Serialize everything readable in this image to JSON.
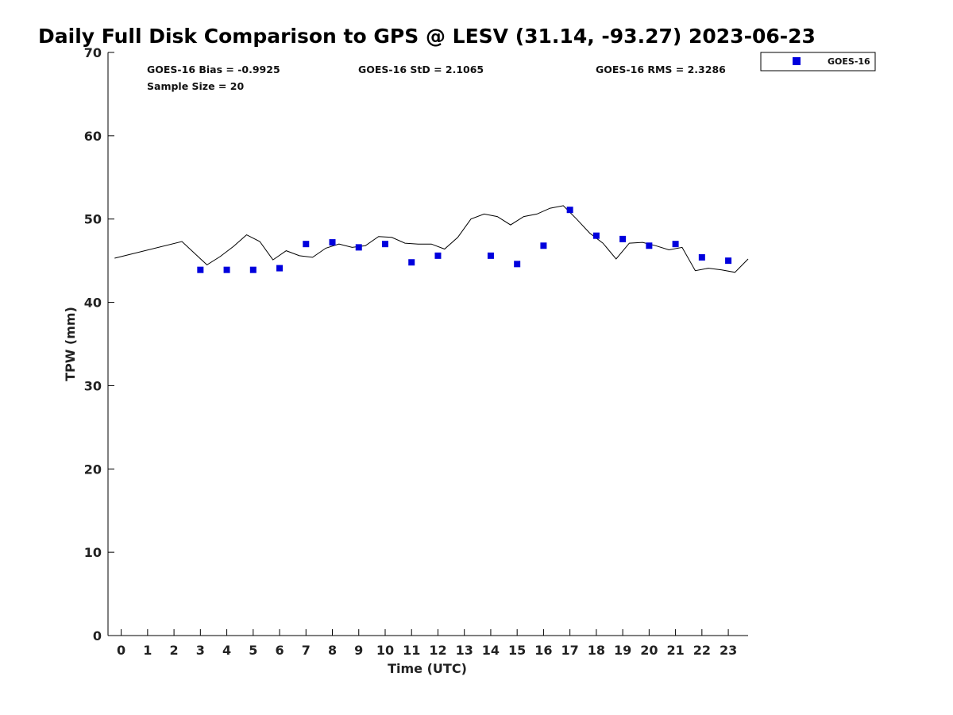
{
  "chart_data": {
    "type": "line",
    "title": "Daily Full Disk Comparison to GPS @ LESV (31.14, -93.27) 2023-06-23",
    "xlabel": "Time (UTC)",
    "ylabel": "TPW (mm)",
    "xlim": [
      -0.5,
      23.75
    ],
    "ylim": [
      0,
      70
    ],
    "x_ticks": [
      0,
      1,
      2,
      3,
      4,
      5,
      6,
      7,
      8,
      9,
      10,
      11,
      12,
      13,
      14,
      15,
      16,
      17,
      18,
      19,
      20,
      21,
      22,
      23
    ],
    "y_ticks": [
      0,
      10,
      20,
      30,
      40,
      50,
      60,
      70
    ],
    "grid": false,
    "legend_position": "outside top-right",
    "stats": {
      "bias": "GOES-16 Bias = -0.9925",
      "std": "GOES-16 StD = 2.1065",
      "rms": "GOES-16 RMS = 2.3286",
      "sample": "Sample Size = 20"
    },
    "series": [
      {
        "kind": "line",
        "color": "#000000",
        "x": [
          -0.25,
          2.3,
          3.25,
          3.75,
          4.25,
          4.75,
          5.25,
          5.75,
          6.25,
          6.75,
          7.25,
          7.75,
          8.25,
          8.75,
          9.25,
          9.75,
          10.25,
          10.75,
          11.25,
          11.75,
          12.25,
          12.75,
          13.25,
          13.75,
          14.25,
          14.75,
          15.25,
          15.75,
          16.25,
          16.75,
          17.25,
          17.75,
          18.25,
          18.75,
          19.25,
          19.75,
          20.25,
          20.75,
          21.25,
          21.75,
          22.25,
          22.75,
          23.25,
          23.75
        ],
        "y": [
          45.3,
          47.3,
          44.5,
          45.5,
          46.7,
          48.1,
          47.3,
          45.1,
          46.2,
          45.6,
          45.4,
          46.5,
          47.0,
          46.6,
          46.8,
          47.9,
          47.8,
          47.1,
          47.0,
          47.0,
          46.4,
          47.8,
          50.0,
          50.6,
          50.3,
          49.3,
          50.3,
          50.6,
          51.3,
          51.6,
          50.0,
          48.3,
          47.1,
          45.2,
          47.1,
          47.2,
          46.8,
          46.3,
          46.6,
          43.8,
          44.1,
          43.9,
          43.6,
          45.2
        ]
      },
      {
        "name": "GOES-16",
        "kind": "scatter",
        "color": "#0000dd",
        "marker": "square",
        "x": [
          3,
          4,
          5,
          6,
          7,
          8,
          9,
          10,
          11,
          12,
          14,
          15,
          16,
          17,
          18,
          19,
          20,
          21,
          22,
          23
        ],
        "y": [
          43.9,
          43.9,
          43.9,
          44.1,
          47.0,
          47.2,
          46.6,
          47.0,
          44.8,
          45.6,
          45.6,
          44.6,
          46.8,
          51.1,
          48.0,
          47.6,
          46.8,
          47.0,
          45.4,
          45.0
        ]
      }
    ]
  }
}
